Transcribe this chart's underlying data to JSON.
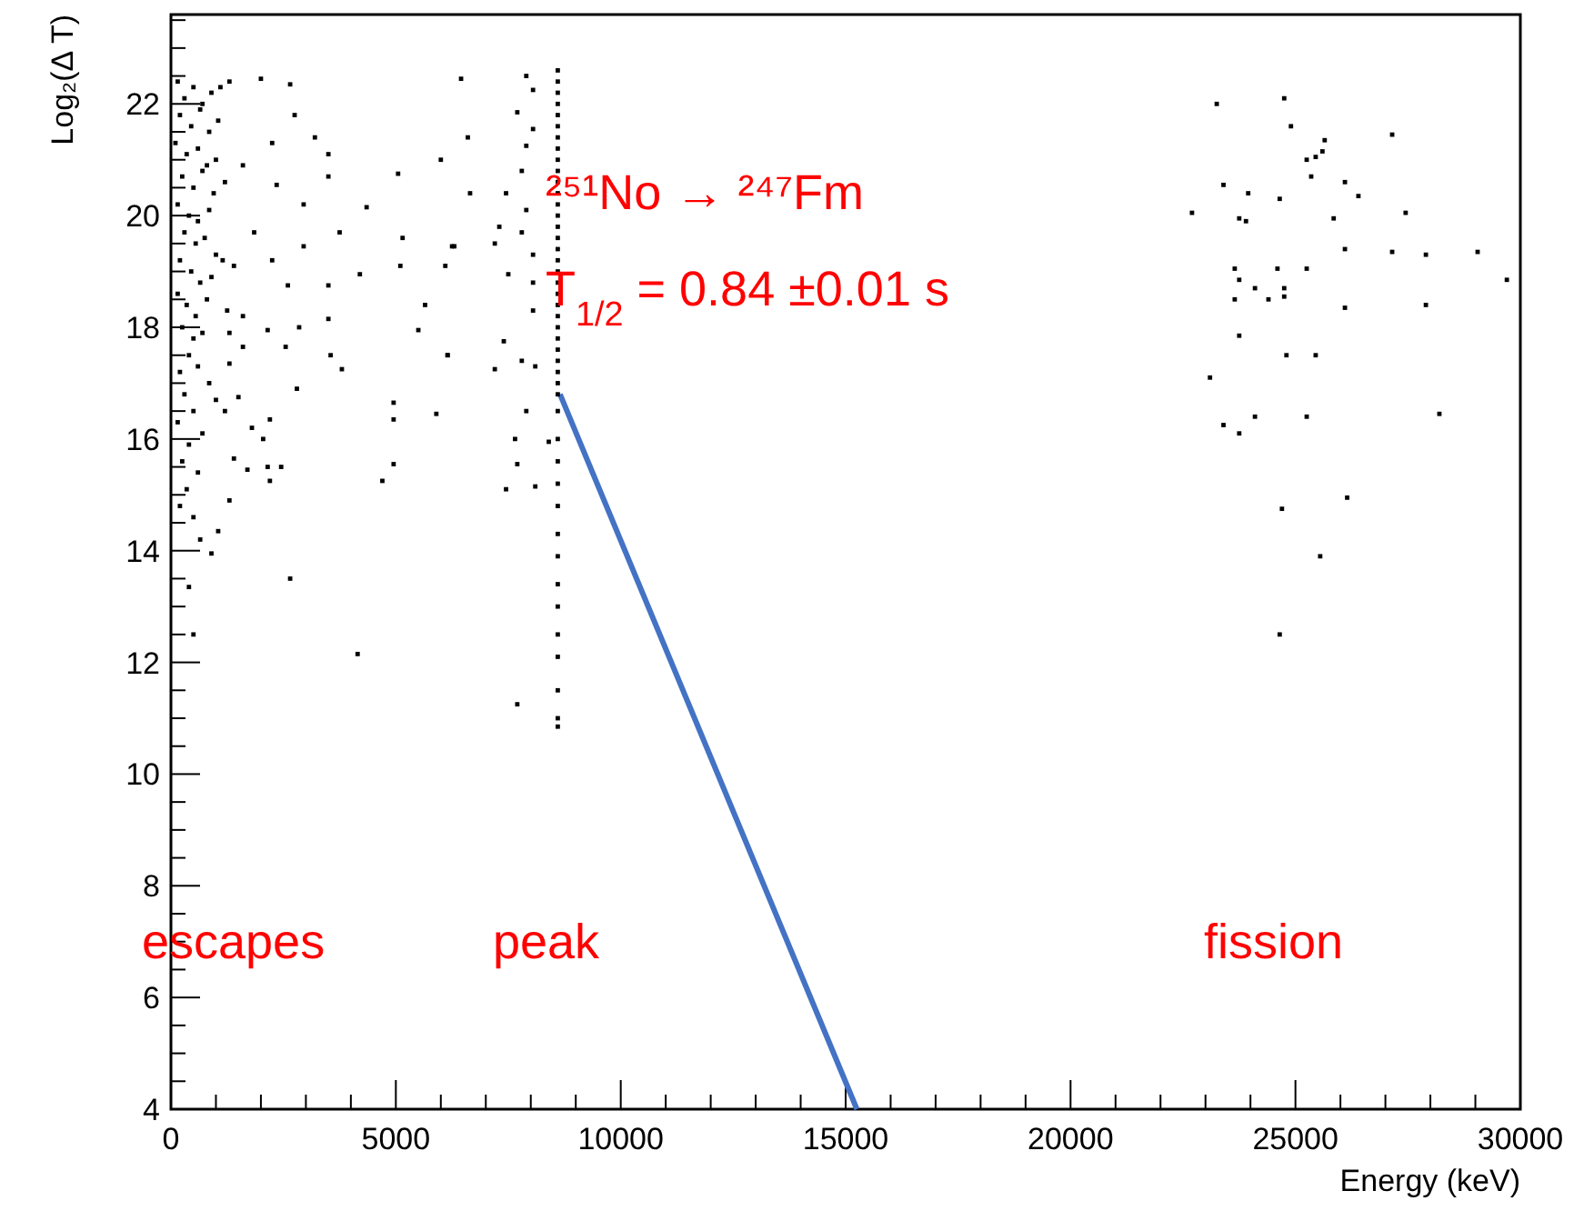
{
  "chart_data": {
    "type": "scatter",
    "xlabel": "Energy (keV)",
    "ylabel": "Log₂(Δ T)",
    "xlim": [
      0,
      30000
    ],
    "ylim": [
      4,
      23.6
    ],
    "xticks": [
      0,
      {
        "value": 1000,
        "label": null
      },
      {
        "value": 2000,
        "label": null
      },
      {
        "value": 3000,
        "label": null
      },
      {
        "value": 4000,
        "label": null
      },
      5000,
      {
        "value": 6000,
        "label": null
      },
      {
        "value": 7000,
        "label": null
      },
      {
        "value": 8000,
        "label": null
      },
      {
        "value": 9000,
        "label": null
      },
      10000,
      {
        "value": 11000,
        "label": null
      },
      {
        "value": 12000,
        "label": null
      },
      {
        "value": 13000,
        "label": null
      },
      {
        "value": 14000,
        "label": null
      },
      15000,
      {
        "value": 16000,
        "label": null
      },
      {
        "value": 17000,
        "label": null
      },
      {
        "value": 18000,
        "label": null
      },
      {
        "value": 19000,
        "label": null
      },
      20000,
      {
        "value": 21000,
        "label": null
      },
      {
        "value": 22000,
        "label": null
      },
      {
        "value": 23000,
        "label": null
      },
      {
        "value": 24000,
        "label": null
      },
      25000,
      {
        "value": 26000,
        "label": null
      },
      {
        "value": 27000,
        "label": null
      },
      {
        "value": 28000,
        "label": null
      },
      {
        "value": 29000,
        "label": null
      },
      30000
    ],
    "yticks": [
      4,
      {
        "value": 4.5,
        "label": null
      },
      {
        "value": 5,
        "label": null
      },
      {
        "value": 5.5,
        "label": null
      },
      6,
      {
        "value": 6.5,
        "label": null
      },
      {
        "value": 7,
        "label": null
      },
      {
        "value": 7.5,
        "label": null
      },
      8,
      {
        "value": 8.5,
        "label": null
      },
      {
        "value": 9,
        "label": null
      },
      {
        "value": 9.5,
        "label": null
      },
      10,
      {
        "value": 10.5,
        "label": null
      },
      {
        "value": 11,
        "label": null
      },
      {
        "value": 11.5,
        "label": null
      },
      12,
      {
        "value": 12.5,
        "label": null
      },
      {
        "value": 13,
        "label": null
      },
      {
        "value": 13.5,
        "label": null
      },
      14,
      {
        "value": 14.5,
        "label": null
      },
      {
        "value": 15,
        "label": null
      },
      {
        "value": 15.5,
        "label": null
      },
      16,
      {
        "value": 16.5,
        "label": null
      },
      {
        "value": 17,
        "label": null
      },
      {
        "value": 17.5,
        "label": null
      },
      18,
      {
        "value": 18.5,
        "label": null
      },
      {
        "value": 19,
        "label": null
      },
      {
        "value": 19.5,
        "label": null
      },
      20,
      {
        "value": 20.5,
        "label": null
      },
      {
        "value": 21,
        "label": null
      },
      {
        "value": 21.5,
        "label": null
      },
      22,
      {
        "value": 22.5,
        "label": null
      },
      {
        "value": 23,
        "label": null
      },
      {
        "value": 23.5,
        "label": null
      }
    ],
    "annotations": [
      "²⁵¹No → ²⁴⁷Fm",
      "T$_{1/2}$ = 0.84 ±0.01 s",
      "escapes",
      "peak",
      "fission"
    ],
    "series": [
      {
        "type": "line",
        "color": "#4472c4",
        "x": [
          8650,
          15250
        ],
        "values": [
          16.8,
          4
        ]
      },
      {
        "color": "#000000",
        "x": [
          150,
          300,
          500,
          700,
          900,
          200,
          450,
          650,
          850,
          1050,
          100,
          350,
          600,
          800,
          1000,
          250,
          500,
          700,
          950,
          150,
          400,
          600,
          850,
          300,
          550,
          750,
          1000,
          200,
          450,
          650,
          900,
          150,
          350,
          550,
          800,
          250,
          500,
          700,
          400,
          600,
          200,
          850,
          300,
          500,
          150,
          700,
          400,
          250,
          600,
          350,
          200,
          500,
          1100,
          1200,
          1150,
          1250,
          1000,
          2650,
          2000,
          1300,
          2750,
          3200,
          3500,
          2250,
          1600,
          2350,
          3500,
          2950,
          4350,
          5050,
          6000,
          3750,
          5150,
          6250,
          2950,
          2250,
          1850,
          1400,
          5100,
          6100,
          4200,
          3500,
          2600,
          1600,
          2150,
          2850,
          3500,
          5650,
          5500,
          1300,
          1600,
          2550,
          3550,
          3800,
          6150,
          1300,
          2800,
          1500,
          4950,
          5900,
          4950,
          1200,
          2200,
          1800,
          2050,
          1400,
          1700,
          2150,
          2450,
          2200,
          4950,
          4700,
          1300,
          1050,
          900,
          2650,
          4150,
          500,
          400,
          650,
          7900,
          8050,
          7700,
          8050,
          7900,
          7800,
          7450,
          7900,
          7300,
          7800,
          7200,
          8050,
          7500,
          8050,
          8050,
          7400,
          7800,
          7200,
          8100,
          7900,
          7650,
          8400,
          7700,
          8100,
          7450,
          7700,
          6600,
          6450,
          6650,
          6300,
          6150,
          8600,
          8600,
          8600,
          8600,
          8600,
          8600,
          8600,
          8600,
          8600,
          8600,
          8600,
          8600,
          8600,
          8600,
          8600,
          8600,
          8600,
          8600,
          8600,
          8600,
          8600,
          8600,
          8600,
          8600,
          8600,
          8600,
          8600,
          8600,
          8600,
          8600,
          8600,
          8600,
          8600,
          8600,
          8600,
          8600,
          8600,
          8600,
          8600,
          8600,
          8600,
          8600,
          8600,
          8600,
          23250,
          24750,
          24900,
          25650,
          27150,
          25250,
          25450,
          25600,
          25350,
          23400,
          23950,
          26100,
          24650,
          26400,
          22700,
          23750,
          23900,
          25850,
          27450,
          26100,
          27150,
          27900,
          29050,
          29700,
          23650,
          24600,
          25250,
          23750,
          24100,
          24750,
          23650,
          24400,
          24750,
          26100,
          27900,
          23750,
          24800,
          25450,
          23100,
          23400,
          23750,
          24100,
          25250,
          28200,
          24700,
          26150,
          25550,
          24650
        ],
        "values": [
          22.4,
          22.1,
          22.3,
          22.0,
          22.2,
          21.8,
          21.6,
          21.9,
          21.5,
          21.7,
          21.3,
          21.1,
          21.2,
          20.9,
          21.0,
          20.7,
          20.5,
          20.8,
          20.4,
          20.2,
          20.0,
          19.9,
          20.1,
          19.7,
          19.5,
          19.6,
          19.3,
          19.2,
          19.0,
          18.8,
          18.9,
          18.6,
          18.4,
          18.2,
          18.5,
          18.0,
          17.8,
          17.9,
          17.5,
          17.3,
          17.2,
          17.0,
          16.8,
          16.5,
          16.3,
          16.1,
          15.9,
          15.6,
          15.4,
          15.1,
          14.8,
          14.6,
          22.3,
          20.6,
          19.2,
          18.3,
          16.7,
          22.35,
          22.45,
          22.4,
          21.8,
          21.4,
          21.1,
          21.3,
          20.9,
          20.55,
          20.7,
          20.2,
          20.15,
          20.75,
          21.0,
          19.7,
          19.6,
          19.45,
          19.45,
          19.2,
          19.7,
          19.1,
          19.1,
          19.1,
          18.95,
          18.75,
          18.75,
          18.2,
          17.95,
          18.0,
          18.15,
          18.4,
          17.95,
          17.9,
          17.65,
          17.65,
          17.5,
          17.25,
          17.5,
          17.35,
          16.9,
          16.75,
          16.65,
          16.45,
          16.35,
          16.5,
          16.35,
          16.2,
          16.0,
          15.65,
          15.45,
          15.5,
          15.5,
          15.25,
          15.55,
          15.25,
          14.9,
          14.35,
          13.95,
          13.5,
          12.15,
          12.5,
          13.35,
          14.2,
          22.5,
          22.25,
          21.85,
          21.55,
          21.25,
          20.8,
          20.4,
          20.1,
          19.8,
          19.7,
          19.5,
          19.3,
          18.95,
          18.8,
          18.3,
          17.75,
          17.4,
          17.25,
          17.3,
          16.5,
          16.0,
          15.95,
          15.55,
          15.15,
          15.1,
          11.25,
          21.4,
          22.45,
          20.4,
          19.45,
          17.5,
          22.6,
          22.4,
          22.2,
          22.0,
          21.8,
          21.6,
          21.4,
          21.2,
          21.0,
          20.8,
          20.6,
          20.4,
          20.2,
          20.0,
          19.8,
          19.6,
          19.4,
          19.2,
          19.0,
          18.8,
          18.6,
          18.4,
          18.2,
          18.0,
          17.8,
          17.6,
          17.4,
          17.2,
          17.0,
          16.8,
          16.5,
          16.0,
          15.6,
          15.2,
          14.8,
          14.3,
          13.9,
          13.4,
          13.0,
          12.5,
          12.1,
          11.5,
          11.0,
          10.85,
          22.0,
          22.1,
          21.6,
          21.35,
          21.45,
          21.0,
          21.05,
          21.15,
          20.7,
          20.55,
          20.4,
          20.6,
          20.3,
          20.35,
          20.05,
          19.95,
          19.9,
          19.95,
          20.05,
          19.4,
          19.35,
          19.3,
          19.35,
          18.85,
          19.05,
          19.05,
          19.05,
          18.85,
          18.7,
          18.7,
          18.5,
          18.5,
          18.55,
          18.35,
          18.4,
          17.85,
          17.5,
          17.5,
          17.1,
          16.25,
          16.1,
          16.4,
          16.4,
          16.45,
          14.75,
          14.95,
          13.9,
          12.5
        ]
      }
    ]
  }
}
